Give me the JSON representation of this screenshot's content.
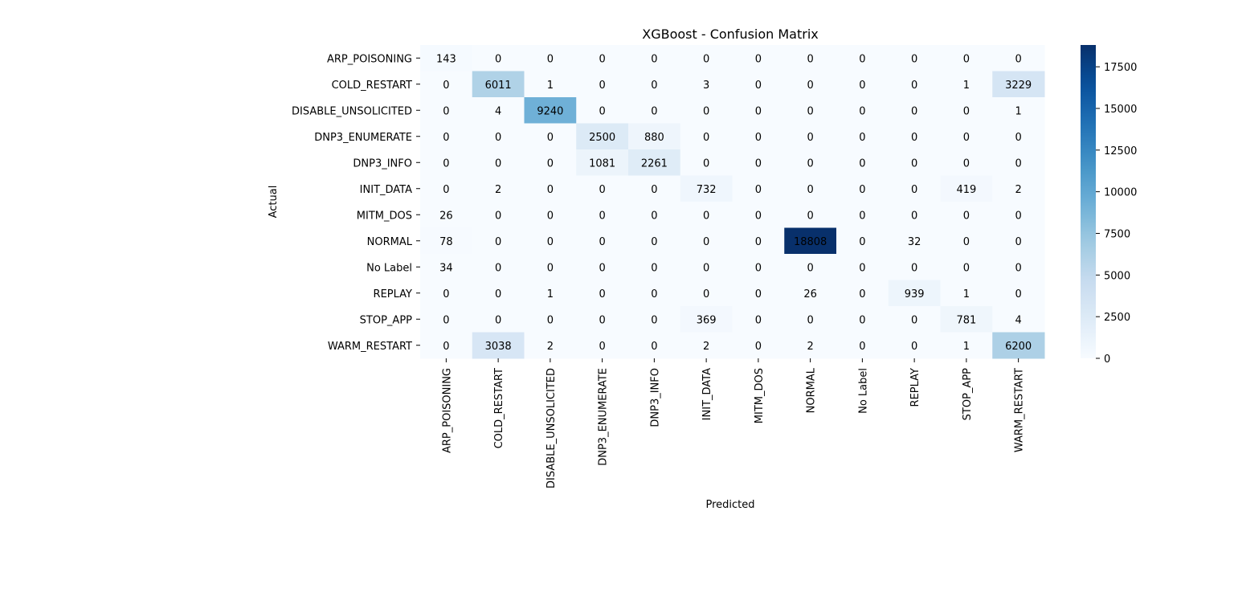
{
  "chart_data": {
    "type": "heatmap",
    "title": "XGBoost - Confusion Matrix",
    "xlabel": "Predicted",
    "ylabel": "Actual",
    "row_labels": [
      "ARP_POISONING",
      "COLD_RESTART",
      "DISABLE_UNSOLICITED",
      "DNP3_ENUMERATE",
      "DNP3_INFO",
      "INIT_DATA",
      "MITM_DOS",
      "NORMAL",
      "No Label",
      "REPLAY",
      "STOP_APP",
      "WARM_RESTART"
    ],
    "col_labels": [
      "ARP_POISONING",
      "COLD_RESTART",
      "DISABLE_UNSOLICITED",
      "DNP3_ENUMERATE",
      "DNP3_INFO",
      "INIT_DATA",
      "MITM_DOS",
      "NORMAL",
      "No Label",
      "REPLAY",
      "STOP_APP",
      "WARM_RESTART"
    ],
    "values": [
      [
        143,
        0,
        0,
        0,
        0,
        0,
        0,
        0,
        0,
        0,
        0,
        0
      ],
      [
        0,
        6011,
        1,
        0,
        0,
        3,
        0,
        0,
        0,
        0,
        1,
        3229
      ],
      [
        0,
        4,
        9240,
        0,
        0,
        0,
        0,
        0,
        0,
        0,
        0,
        1
      ],
      [
        0,
        0,
        0,
        2500,
        880,
        0,
        0,
        0,
        0,
        0,
        0,
        0
      ],
      [
        0,
        0,
        0,
        1081,
        2261,
        0,
        0,
        0,
        0,
        0,
        0,
        0
      ],
      [
        0,
        2,
        0,
        0,
        0,
        732,
        0,
        0,
        0,
        0,
        419,
        2
      ],
      [
        26,
        0,
        0,
        0,
        0,
        0,
        0,
        0,
        0,
        0,
        0,
        0
      ],
      [
        78,
        0,
        0,
        0,
        0,
        0,
        0,
        18808,
        0,
        32,
        0,
        0
      ],
      [
        34,
        0,
        0,
        0,
        0,
        0,
        0,
        0,
        0,
        0,
        0,
        0
      ],
      [
        0,
        0,
        1,
        0,
        0,
        0,
        0,
        26,
        0,
        939,
        1,
        0
      ],
      [
        0,
        0,
        0,
        0,
        0,
        369,
        0,
        0,
        0,
        0,
        781,
        4
      ],
      [
        0,
        3038,
        2,
        0,
        0,
        2,
        0,
        2,
        0,
        0,
        1,
        6200
      ]
    ],
    "colormap": "Blues",
    "colorbar": {
      "ticks": [
        0,
        2500,
        5000,
        7500,
        10000,
        12500,
        15000,
        17500
      ],
      "range": [
        0,
        18808
      ]
    },
    "grid": false
  }
}
